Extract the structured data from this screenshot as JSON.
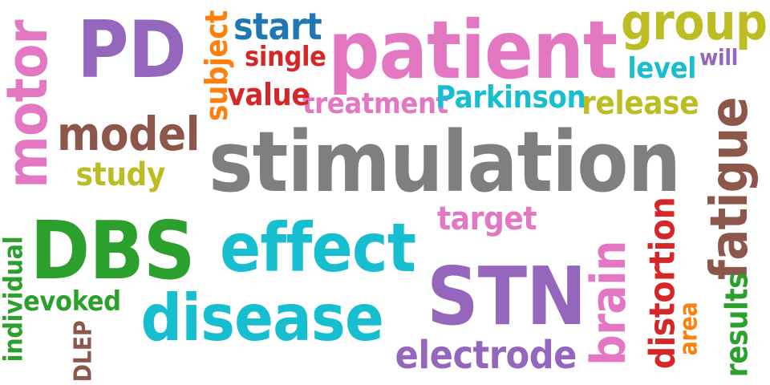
{
  "words": [
    {
      "id": "stimulation",
      "text": "stimulation",
      "color": "#7f7f7f",
      "vertical": false
    },
    {
      "id": "patient",
      "text": "patient",
      "color": "#e377c2",
      "vertical": false
    },
    {
      "id": "STN",
      "text": "STN",
      "color": "#9467bd",
      "vertical": false
    },
    {
      "id": "DBS",
      "text": "DBS",
      "color": "#2ca02c",
      "vertical": false
    },
    {
      "id": "effect",
      "text": "effect",
      "color": "#17becf",
      "vertical": false
    },
    {
      "id": "disease",
      "text": "disease",
      "color": "#17becf",
      "vertical": false
    },
    {
      "id": "PD",
      "text": "PD",
      "color": "#9467bd",
      "vertical": false
    },
    {
      "id": "group",
      "text": "group",
      "color": "#bcbd22",
      "vertical": false
    },
    {
      "id": "motor",
      "text": "motor",
      "color": "#e377c2",
      "vertical": true
    },
    {
      "id": "fatigue",
      "text": "fatigue",
      "color": "#8c564b",
      "vertical": true
    },
    {
      "id": "brain",
      "text": "brain",
      "color": "#e377c2",
      "vertical": true
    },
    {
      "id": "model",
      "text": "model",
      "color": "#8c564b",
      "vertical": false
    },
    {
      "id": "electrode",
      "text": "electrode",
      "color": "#9467bd",
      "vertical": false
    },
    {
      "id": "distortion",
      "text": "distortion",
      "color": "#d62728",
      "vertical": true
    },
    {
      "id": "start",
      "text": "start",
      "color": "#1f77b4",
      "vertical": false
    },
    {
      "id": "treatment",
      "text": "treatment",
      "color": "#e377c2",
      "vertical": false
    },
    {
      "id": "Parkinson",
      "text": "Parkinson",
      "color": "#17becf",
      "vertical": false
    },
    {
      "id": "release",
      "text": "release",
      "color": "#bcbd22",
      "vertical": false
    },
    {
      "id": "subject",
      "text": "subject",
      "color": "#ff7f0e",
      "vertical": true
    },
    {
      "id": "study",
      "text": "study",
      "color": "#bcbd22",
      "vertical": false
    },
    {
      "id": "target",
      "text": "target",
      "color": "#e377c2",
      "vertical": false
    },
    {
      "id": "value",
      "text": "value",
      "color": "#d62728",
      "vertical": false
    },
    {
      "id": "single",
      "text": "single",
      "color": "#d62728",
      "vertical": false
    },
    {
      "id": "level",
      "text": "level",
      "color": "#17becf",
      "vertical": false
    },
    {
      "id": "will",
      "text": "will",
      "color": "#9467bd",
      "vertical": false
    },
    {
      "id": "evoked",
      "text": "evoked",
      "color": "#2ca02c",
      "vertical": false
    },
    {
      "id": "area",
      "text": "area",
      "color": "#ff7f0e",
      "vertical": true
    },
    {
      "id": "results",
      "text": "results",
      "color": "#2ca02c",
      "vertical": true
    },
    {
      "id": "individual",
      "text": "individual",
      "color": "#2ca02c",
      "vertical": true
    },
    {
      "id": "DLEP",
      "text": "DLEP",
      "color": "#8c564b",
      "vertical": true
    }
  ]
}
